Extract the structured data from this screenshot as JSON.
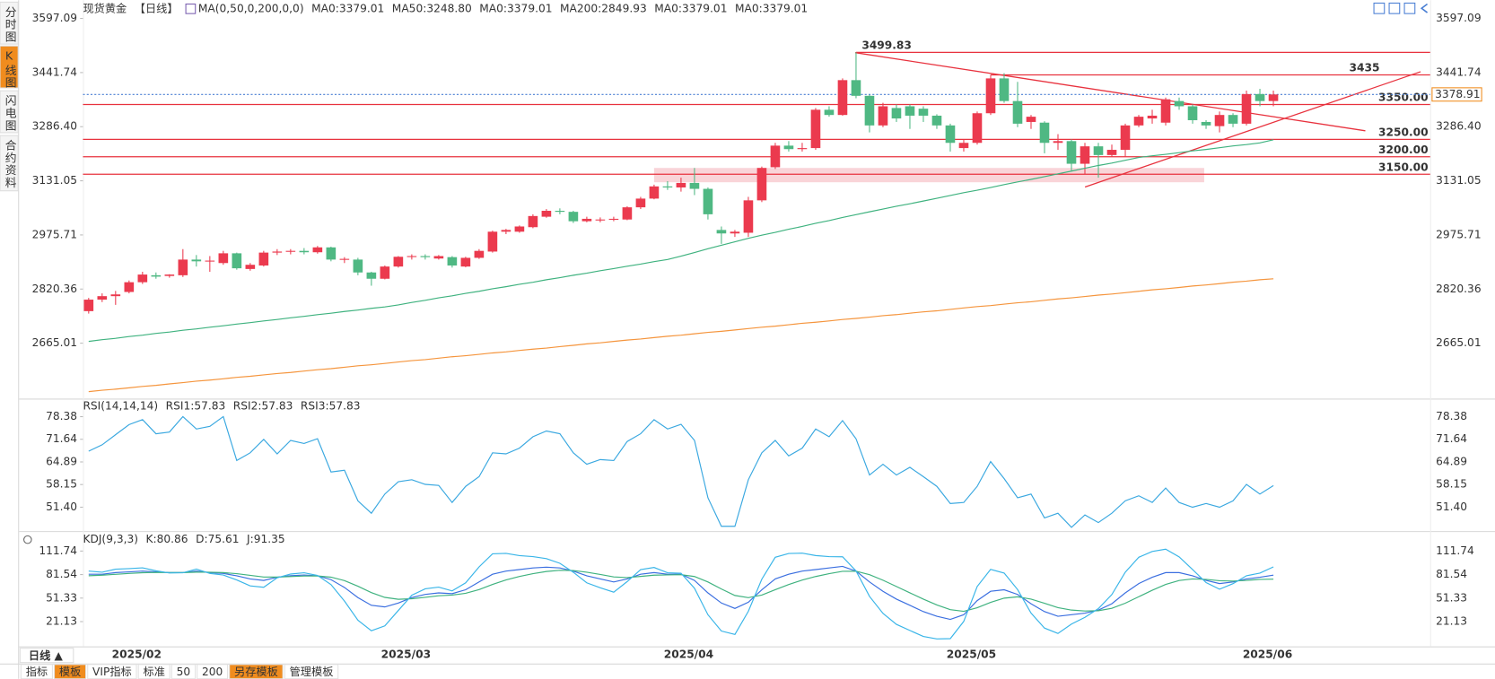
{
  "chart_data": [
    {
      "type": "candlestick",
      "title": "现货黄金",
      "subtitle": "【日线】",
      "indicator": "MA(0,50,0,200,0,0)",
      "up_color": "#eb3a4e",
      "down_color": "#4fb883",
      "categories": [
        null,
        null,
        null,
        "2025/02",
        null,
        null,
        null,
        null,
        null,
        null,
        null,
        null,
        null,
        null,
        null,
        null,
        null,
        null,
        null,
        null,
        null,
        null,
        null,
        "2025/03",
        null,
        null,
        null,
        null,
        null,
        null,
        null,
        null,
        null,
        null,
        null,
        null,
        null,
        null,
        null,
        null,
        null,
        null,
        null,
        null,
        "2025/04",
        null,
        null,
        null,
        null,
        null,
        null,
        null,
        null,
        null,
        null,
        null,
        null,
        null,
        null,
        null,
        null,
        null,
        null,
        null,
        null,
        "2025/05",
        null,
        null,
        null,
        null,
        null,
        null,
        null,
        null,
        null,
        null,
        null,
        null,
        null,
        null,
        null,
        null,
        null,
        null,
        null,
        null,
        null,
        "2025/06",
        null
      ],
      "open": [
        2757,
        2790,
        2800,
        2812,
        2840,
        2860,
        2858,
        2860,
        2905,
        2900,
        2895,
        2923,
        2878,
        2888,
        2925,
        2928,
        2930,
        2926,
        2940,
        2905,
        2905,
        2868,
        2850,
        2885,
        2913,
        2915,
        2908,
        2912,
        2885,
        2910,
        2928,
        2985,
        2985,
        2998,
        3028,
        3045,
        3042,
        3015,
        3020,
        3020,
        3020,
        3055,
        3080,
        3115,
        3112,
        3125,
        3108,
        2990,
        2980,
        2982,
        3075,
        3170,
        3232,
        3222,
        3225,
        3335,
        3320,
        3420,
        3375,
        3290,
        3340,
        3345,
        3338,
        3318,
        3290,
        3225,
        3240,
        3325,
        3425,
        3360,
        3300,
        3298,
        3240,
        3245,
        3180,
        3230,
        3205,
        3220,
        3290,
        3310,
        3298,
        3360,
        3345,
        3300,
        3288,
        3320,
        3295,
        3380,
        3360
      ],
      "high": [
        2795,
        2808,
        2815,
        2845,
        2870,
        2868,
        2863,
        2935,
        2918,
        2915,
        2930,
        2925,
        2895,
        2930,
        2935,
        2935,
        2938,
        2944,
        2942,
        2912,
        2910,
        2870,
        2888,
        2915,
        2920,
        2920,
        2918,
        2915,
        2913,
        2935,
        2988,
        2993,
        3003,
        3035,
        3050,
        3052,
        3045,
        3028,
        3026,
        3028,
        3058,
        3085,
        3120,
        3130,
        3140,
        3168,
        3112,
        3000,
        2990,
        3085,
        3172,
        3240,
        3245,
        3240,
        3340,
        3345,
        3425,
        3499.83,
        3378,
        3355,
        3350,
        3350,
        3345,
        3322,
        3295,
        3250,
        3330,
        3435,
        3440,
        3415,
        3320,
        3302,
        3265,
        3250,
        3240,
        3240,
        3235,
        3295,
        3320,
        3335,
        3370,
        3370,
        3350,
        3305,
        3330,
        3325,
        3390,
        3395,
        3390
      ],
      "low": [
        2750,
        2783,
        2775,
        2808,
        2835,
        2850,
        2853,
        2855,
        2885,
        2870,
        2890,
        2876,
        2873,
        2885,
        2918,
        2920,
        2920,
        2922,
        2900,
        2895,
        2860,
        2830,
        2848,
        2882,
        2905,
        2905,
        2905,
        2882,
        2883,
        2907,
        2925,
        2978,
        2982,
        2995,
        3025,
        3035,
        3010,
        3012,
        3012,
        3015,
        3018,
        3050,
        3078,
        3105,
        3100,
        3090,
        3020,
        2950,
        2970,
        2970,
        3070,
        3165,
        3215,
        3215,
        3220,
        3315,
        3318,
        3368,
        3270,
        3285,
        3300,
        3280,
        3300,
        3280,
        3215,
        3215,
        3235,
        3320,
        3355,
        3285,
        3280,
        3210,
        3220,
        3160,
        3150,
        3140,
        3200,
        3200,
        3285,
        3295,
        3290,
        3335,
        3295,
        3280,
        3270,
        3285,
        3290,
        3345,
        3345
      ],
      "close": [
        2790,
        2800,
        2805,
        2840,
        2862,
        2856,
        2862,
        2905,
        2900,
        2902,
        2923,
        2880,
        2890,
        2925,
        2928,
        2930,
        2926,
        2940,
        2905,
        2907,
        2868,
        2850,
        2885,
        2913,
        2915,
        2912,
        2915,
        2888,
        2910,
        2930,
        2985,
        2990,
        3000,
        3030,
        3045,
        3042,
        3015,
        3022,
        3020,
        3022,
        3055,
        3080,
        3115,
        3112,
        3125,
        3108,
        3035,
        2980,
        2985,
        3075,
        3168,
        3232,
        3222,
        3225,
        3335,
        3320,
        3420,
        3375,
        3290,
        3345,
        3310,
        3318,
        3318,
        3290,
        3240,
        3240,
        3325,
        3425,
        3360,
        3295,
        3315,
        3240,
        3245,
        3180,
        3230,
        3205,
        3220,
        3290,
        3315,
        3318,
        3365,
        3345,
        3305,
        3290,
        3320,
        3295,
        3380,
        3360,
        3378.91
      ],
      "series": [
        {
          "name": "MA0:3379.01",
          "color": "#3a8ee6"
        },
        {
          "name": "MA50:3248.80",
          "color": "#3fb27f",
          "values": [
            2670,
            2675,
            2679,
            2684,
            2688,
            2693,
            2697,
            2702,
            2706,
            2711,
            2715,
            2720,
            2724,
            2729,
            2733,
            2738,
            2742,
            2747,
            2751,
            2756,
            2760,
            2765,
            2769,
            2775,
            2782,
            2788,
            2795,
            2801,
            2808,
            2814,
            2821,
            2827,
            2834,
            2840,
            2847,
            2853,
            2860,
            2866,
            2873,
            2879,
            2886,
            2892,
            2899,
            2905,
            2915,
            2925,
            2936,
            2946,
            2956,
            2966,
            2975,
            2983,
            2992,
            3000,
            3009,
            3017,
            3026,
            3034,
            3042,
            3050,
            3058,
            3065,
            3073,
            3081,
            3089,
            3097,
            3104,
            3112,
            3120,
            3128,
            3135,
            3143,
            3151,
            3159,
            3167,
            3175,
            3182,
            3190,
            3198,
            3203,
            3207,
            3212,
            3217,
            3221,
            3226,
            3231,
            3235,
            3240,
            3248.8
          ]
        },
        {
          "name": "MA0:3379.01",
          "color": "#33b5d8"
        },
        {
          "name": "MA200:2849.93",
          "color": "#f5953d",
          "values": [
            2526,
            2530,
            2533,
            2537,
            2541,
            2544,
            2548,
            2552,
            2556,
            2559,
            2563,
            2567,
            2570,
            2574,
            2578,
            2581,
            2585,
            2589,
            2592,
            2596,
            2600,
            2603,
            2607,
            2611,
            2615,
            2618,
            2622,
            2626,
            2629,
            2633,
            2637,
            2640,
            2644,
            2648,
            2651,
            2655,
            2659,
            2663,
            2666,
            2670,
            2674,
            2677,
            2681,
            2685,
            2688,
            2692,
            2696,
            2699,
            2703,
            2707,
            2711,
            2714,
            2718,
            2722,
            2725,
            2729,
            2733,
            2736,
            2740,
            2744,
            2747,
            2751,
            2755,
            2758,
            2762,
            2766,
            2770,
            2773,
            2777,
            2781,
            2784,
            2788,
            2792,
            2795,
            2799,
            2803,
            2806,
            2810,
            2814,
            2818,
            2821,
            2825,
            2829,
            2832,
            2836,
            2840,
            2843,
            2847,
            2849.93
          ]
        },
        {
          "name": "MA0:3379.01",
          "color": "#e87fc8"
        },
        {
          "name": "MA0:3379.01",
          "color": "#6a8fe8"
        }
      ],
      "ylim": [
        2506,
        3622
      ],
      "yticks": [
        3597.09,
        3441.74,
        {
          "value": 3286.4,
          "label": "3286.40"
        },
        3131.05,
        2975.71,
        2820.36,
        2665.01
      ],
      "levels": [
        3499.83,
        3435,
        {
          "value": 3350,
          "label": "3350.00"
        },
        {
          "value": 3250,
          "label": "3250.00"
        },
        {
          "value": 3200,
          "label": "3200.00"
        },
        {
          "value": 3150,
          "label": "3150.00"
        }
      ],
      "level_color": "#e8323e",
      "last_price": 3378.91,
      "last_price_color": "#f08c1e"
    },
    {
      "type": "line",
      "title": "RSI(14,14,14)",
      "series": [
        {
          "name": "RSI1:57.83",
          "color": "#3aa8e0",
          "values": [
            68.1,
            70,
            73,
            76,
            77.5,
            73.3,
            73.8,
            78.4,
            74.7,
            75.5,
            78.4,
            65.3,
            67.6,
            71.6,
            67.3,
            71.3,
            70.4,
            71.8,
            61.9,
            62.4,
            53.3,
            49.6,
            55.3,
            59,
            59.6,
            58.2,
            57.9,
            52.8,
            57.6,
            60.5,
            67.6,
            67.3,
            69,
            72.4,
            74.1,
            73.3,
            67.6,
            64.2,
            65.6,
            65.3,
            71,
            73.3,
            77.5,
            74.7,
            76.1,
            71.3,
            54.2,
            45.7,
            45.7,
            59.6,
            67.6,
            71.3,
            66.7,
            69,
            74.7,
            72.4,
            77.2,
            71.8,
            61,
            64.2,
            61,
            63.3,
            60.5,
            57.6,
            52.5,
            52.8,
            57.6,
            65,
            59.9,
            54.2,
            55.3,
            48.2,
            49.6,
            45.4,
            49.1,
            46.8,
            49.6,
            53.3,
            54.8,
            52.8,
            57.1,
            52.8,
            51.4,
            52.5,
            51.4,
            53.3,
            58.2,
            55.3,
            57.83
          ]
        },
        {
          "name": "RSI2:57.83",
          "color": "#3fb27f"
        },
        {
          "name": "RSI3:57.83",
          "color": "#33b5d8"
        }
      ],
      "ylim": [
        44.57,
        83.2
      ],
      "yticks": [
        78.38,
        71.64,
        64.89,
        58.15,
        {
          "value": 51.4,
          "label": "51.40"
        }
      ]
    },
    {
      "type": "line",
      "title": "KDJ(9,3,3)",
      "series": [
        {
          "name": "K:80.86",
          "color": "#3b6fe0",
          "values": [
            82,
            82,
            84,
            85,
            86,
            85,
            84,
            84,
            86,
            84,
            83,
            80,
            76,
            74,
            78,
            80,
            81,
            80,
            75,
            65,
            52,
            42,
            40,
            45,
            52,
            56,
            58,
            57,
            62,
            72,
            82,
            86,
            88,
            90,
            91,
            90,
            86,
            80,
            76,
            72,
            76,
            82,
            84,
            82,
            82,
            74,
            58,
            45,
            38,
            46,
            62,
            76,
            82,
            86,
            88,
            90,
            92,
            86,
            72,
            60,
            50,
            42,
            34,
            28,
            24,
            30,
            48,
            60,
            62,
            56,
            44,
            34,
            28,
            30,
            32,
            36,
            44,
            58,
            70,
            78,
            84,
            84,
            80,
            74,
            70,
            72,
            76,
            78,
            80.86
          ]
        },
        {
          "name": "D:75.61",
          "color": "#3fb27f",
          "values": [
            80,
            80.7,
            81.8,
            82.9,
            83.9,
            84.3,
            84.2,
            84.1,
            84.7,
            84.5,
            84,
            82.7,
            80.5,
            78.4,
            78.3,
            78.9,
            79.6,
            79.8,
            78.2,
            73.8,
            66.5,
            58.3,
            52.2,
            49.8,
            50.5,
            52.4,
            54.3,
            55.2,
            57.5,
            62.3,
            68.9,
            74.6,
            79.1,
            82.7,
            85.5,
            87,
            86.7,
            84.5,
            81.7,
            78.5,
            77.7,
            79.1,
            80.7,
            81.1,
            81.4,
            79,
            72,
            63,
            54.7,
            51.8,
            55.2,
            62.1,
            68.7,
            74.5,
            79,
            82.7,
            85.8,
            85.9,
            81.3,
            74.2,
            66.2,
            58.1,
            50,
            42.6,
            36.4,
            34.3,
            38.9,
            45.9,
            51.3,
            52.9,
            50,
            44.6,
            39,
            36,
            34.7,
            35.1,
            38.1,
            44.7,
            53.1,
            61.4,
            68.9,
            73.9,
            76,
            75.4,
            73.6,
            73.1,
            74,
            75.3,
            75.61
          ]
        },
        {
          "name": "J:91.35",
          "color": "#39b5e8",
          "values": [
            86,
            84.6,
            88.4,
            89.2,
            90.2,
            86.4,
            83.6,
            83.8,
            88.6,
            83,
            81,
            74.6,
            67,
            65.2,
            77.4,
            82.2,
            83.8,
            80.4,
            68.6,
            47.4,
            23,
            9.4,
            15.6,
            35.4,
            55,
            63.2,
            65.4,
            60.6,
            71,
            91.4,
            108.2,
            108.8,
            105.8,
            104.6,
            102,
            96,
            84.6,
            71,
            64.6,
            59,
            72.6,
            87.8,
            90.6,
            83.8,
            83.2,
            64,
            30,
            9,
            4.6,
            34.4,
            75.6,
            103.8,
            108.6,
            109,
            106,
            104.6,
            104.4,
            86.2,
            53.4,
            31.6,
            17.6,
            9.8,
            2,
            -1.2,
            -0.8,
            21.4,
            66.2,
            88.2,
            83.4,
            62.2,
            32,
            12.8,
            6,
            18,
            26.6,
            37.8,
            55.8,
            84.6,
            103.8,
            111.2,
            114.2,
            104.2,
            88,
            71.2,
            62.8,
            69.8,
            80,
            83.4,
            91.35
          ]
        }
      ],
      "ylim": [
        -10.7,
        133.75
      ],
      "yticks": [
        111.74,
        81.54,
        51.33,
        21.13
      ]
    }
  ],
  "ui": {
    "side_tabs": [
      "分时图",
      "K线图",
      "闪电图",
      "合约资料"
    ],
    "period": "日线 ▲",
    "bottom_tabs": [
      "指标",
      "模板",
      "VIP指标",
      "标准",
      "50",
      "200",
      "另存模板",
      "管理模板"
    ]
  }
}
